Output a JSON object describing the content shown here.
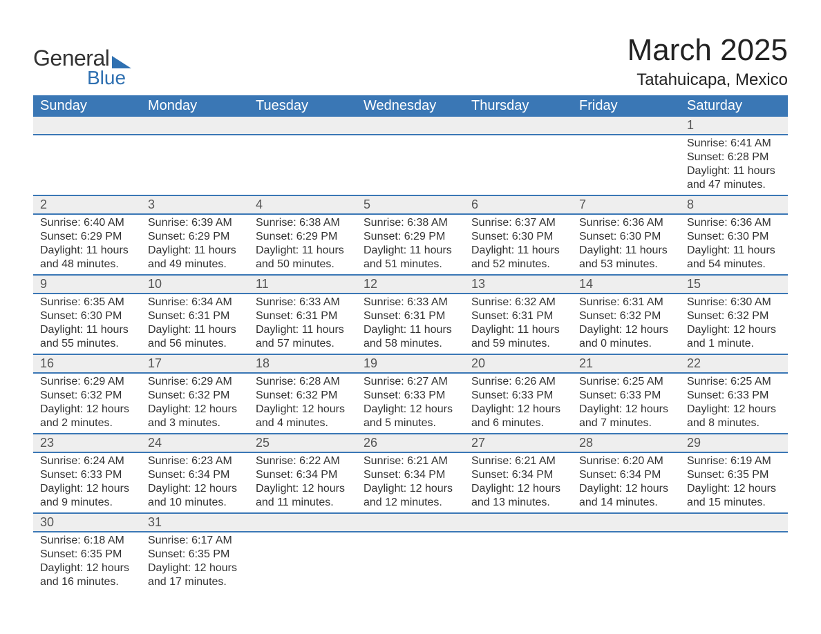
{
  "logo": {
    "text_general": "General",
    "text_blue": "Blue",
    "shape_color": "#2f70b1"
  },
  "header": {
    "month_title": "March 2025",
    "location": "Tatahuicapa, Mexico"
  },
  "calendar": {
    "header_bg": "#3a77b5",
    "header_fg": "#ffffff",
    "daynum_bg": "#eeeeee",
    "border_color": "#3a77b5",
    "days_of_week": [
      "Sunday",
      "Monday",
      "Tuesday",
      "Wednesday",
      "Thursday",
      "Friday",
      "Saturday"
    ],
    "weeks": [
      [
        null,
        null,
        null,
        null,
        null,
        null,
        {
          "n": "1",
          "sunrise": "6:41 AM",
          "sunset": "6:28 PM",
          "daylight": "11 hours and 47 minutes."
        }
      ],
      [
        {
          "n": "2",
          "sunrise": "6:40 AM",
          "sunset": "6:29 PM",
          "daylight": "11 hours and 48 minutes."
        },
        {
          "n": "3",
          "sunrise": "6:39 AM",
          "sunset": "6:29 PM",
          "daylight": "11 hours and 49 minutes."
        },
        {
          "n": "4",
          "sunrise": "6:38 AM",
          "sunset": "6:29 PM",
          "daylight": "11 hours and 50 minutes."
        },
        {
          "n": "5",
          "sunrise": "6:38 AM",
          "sunset": "6:29 PM",
          "daylight": "11 hours and 51 minutes."
        },
        {
          "n": "6",
          "sunrise": "6:37 AM",
          "sunset": "6:30 PM",
          "daylight": "11 hours and 52 minutes."
        },
        {
          "n": "7",
          "sunrise": "6:36 AM",
          "sunset": "6:30 PM",
          "daylight": "11 hours and 53 minutes."
        },
        {
          "n": "8",
          "sunrise": "6:36 AM",
          "sunset": "6:30 PM",
          "daylight": "11 hours and 54 minutes."
        }
      ],
      [
        {
          "n": "9",
          "sunrise": "6:35 AM",
          "sunset": "6:30 PM",
          "daylight": "11 hours and 55 minutes."
        },
        {
          "n": "10",
          "sunrise": "6:34 AM",
          "sunset": "6:31 PM",
          "daylight": "11 hours and 56 minutes."
        },
        {
          "n": "11",
          "sunrise": "6:33 AM",
          "sunset": "6:31 PM",
          "daylight": "11 hours and 57 minutes."
        },
        {
          "n": "12",
          "sunrise": "6:33 AM",
          "sunset": "6:31 PM",
          "daylight": "11 hours and 58 minutes."
        },
        {
          "n": "13",
          "sunrise": "6:32 AM",
          "sunset": "6:31 PM",
          "daylight": "11 hours and 59 minutes."
        },
        {
          "n": "14",
          "sunrise": "6:31 AM",
          "sunset": "6:32 PM",
          "daylight": "12 hours and 0 minutes."
        },
        {
          "n": "15",
          "sunrise": "6:30 AM",
          "sunset": "6:32 PM",
          "daylight": "12 hours and 1 minute."
        }
      ],
      [
        {
          "n": "16",
          "sunrise": "6:29 AM",
          "sunset": "6:32 PM",
          "daylight": "12 hours and 2 minutes."
        },
        {
          "n": "17",
          "sunrise": "6:29 AM",
          "sunset": "6:32 PM",
          "daylight": "12 hours and 3 minutes."
        },
        {
          "n": "18",
          "sunrise": "6:28 AM",
          "sunset": "6:32 PM",
          "daylight": "12 hours and 4 minutes."
        },
        {
          "n": "19",
          "sunrise": "6:27 AM",
          "sunset": "6:33 PM",
          "daylight": "12 hours and 5 minutes."
        },
        {
          "n": "20",
          "sunrise": "6:26 AM",
          "sunset": "6:33 PM",
          "daylight": "12 hours and 6 minutes."
        },
        {
          "n": "21",
          "sunrise": "6:25 AM",
          "sunset": "6:33 PM",
          "daylight": "12 hours and 7 minutes."
        },
        {
          "n": "22",
          "sunrise": "6:25 AM",
          "sunset": "6:33 PM",
          "daylight": "12 hours and 8 minutes."
        }
      ],
      [
        {
          "n": "23",
          "sunrise": "6:24 AM",
          "sunset": "6:33 PM",
          "daylight": "12 hours and 9 minutes."
        },
        {
          "n": "24",
          "sunrise": "6:23 AM",
          "sunset": "6:34 PM",
          "daylight": "12 hours and 10 minutes."
        },
        {
          "n": "25",
          "sunrise": "6:22 AM",
          "sunset": "6:34 PM",
          "daylight": "12 hours and 11 minutes."
        },
        {
          "n": "26",
          "sunrise": "6:21 AM",
          "sunset": "6:34 PM",
          "daylight": "12 hours and 12 minutes."
        },
        {
          "n": "27",
          "sunrise": "6:21 AM",
          "sunset": "6:34 PM",
          "daylight": "12 hours and 13 minutes."
        },
        {
          "n": "28",
          "sunrise": "6:20 AM",
          "sunset": "6:34 PM",
          "daylight": "12 hours and 14 minutes."
        },
        {
          "n": "29",
          "sunrise": "6:19 AM",
          "sunset": "6:35 PM",
          "daylight": "12 hours and 15 minutes."
        }
      ],
      [
        {
          "n": "30",
          "sunrise": "6:18 AM",
          "sunset": "6:35 PM",
          "daylight": "12 hours and 16 minutes."
        },
        {
          "n": "31",
          "sunrise": "6:17 AM",
          "sunset": "6:35 PM",
          "daylight": "12 hours and 17 minutes."
        },
        null,
        null,
        null,
        null,
        null
      ]
    ],
    "labels": {
      "sunrise_prefix": "Sunrise: ",
      "sunset_prefix": "Sunset: ",
      "daylight_prefix": "Daylight: "
    }
  }
}
